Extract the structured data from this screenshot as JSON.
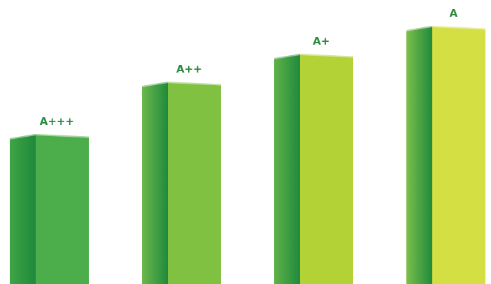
{
  "chart_data": {
    "type": "bar",
    "title": "",
    "xlabel": "",
    "ylabel": "",
    "categories": [
      "A+++",
      "A++",
      "A+",
      "A"
    ],
    "values": [
      215,
      290,
      330,
      370
    ],
    "ylim": [
      0,
      400
    ],
    "grid": false,
    "legend": "none",
    "colors": {
      "front": [
        "#4cae4a",
        "#80c142",
        "#b2d236",
        "#d4df44"
      ],
      "side_light": [
        "#3fa445",
        "#6cb84b",
        "#5fb24a",
        "#7cbf4a"
      ],
      "side_dark": "#1f8a3c",
      "top": [
        "#f4f6ef",
        "#f4f6ef",
        "#f4f6ef",
        "#f4f6ef"
      ],
      "label": "#2a8a3e"
    }
  }
}
